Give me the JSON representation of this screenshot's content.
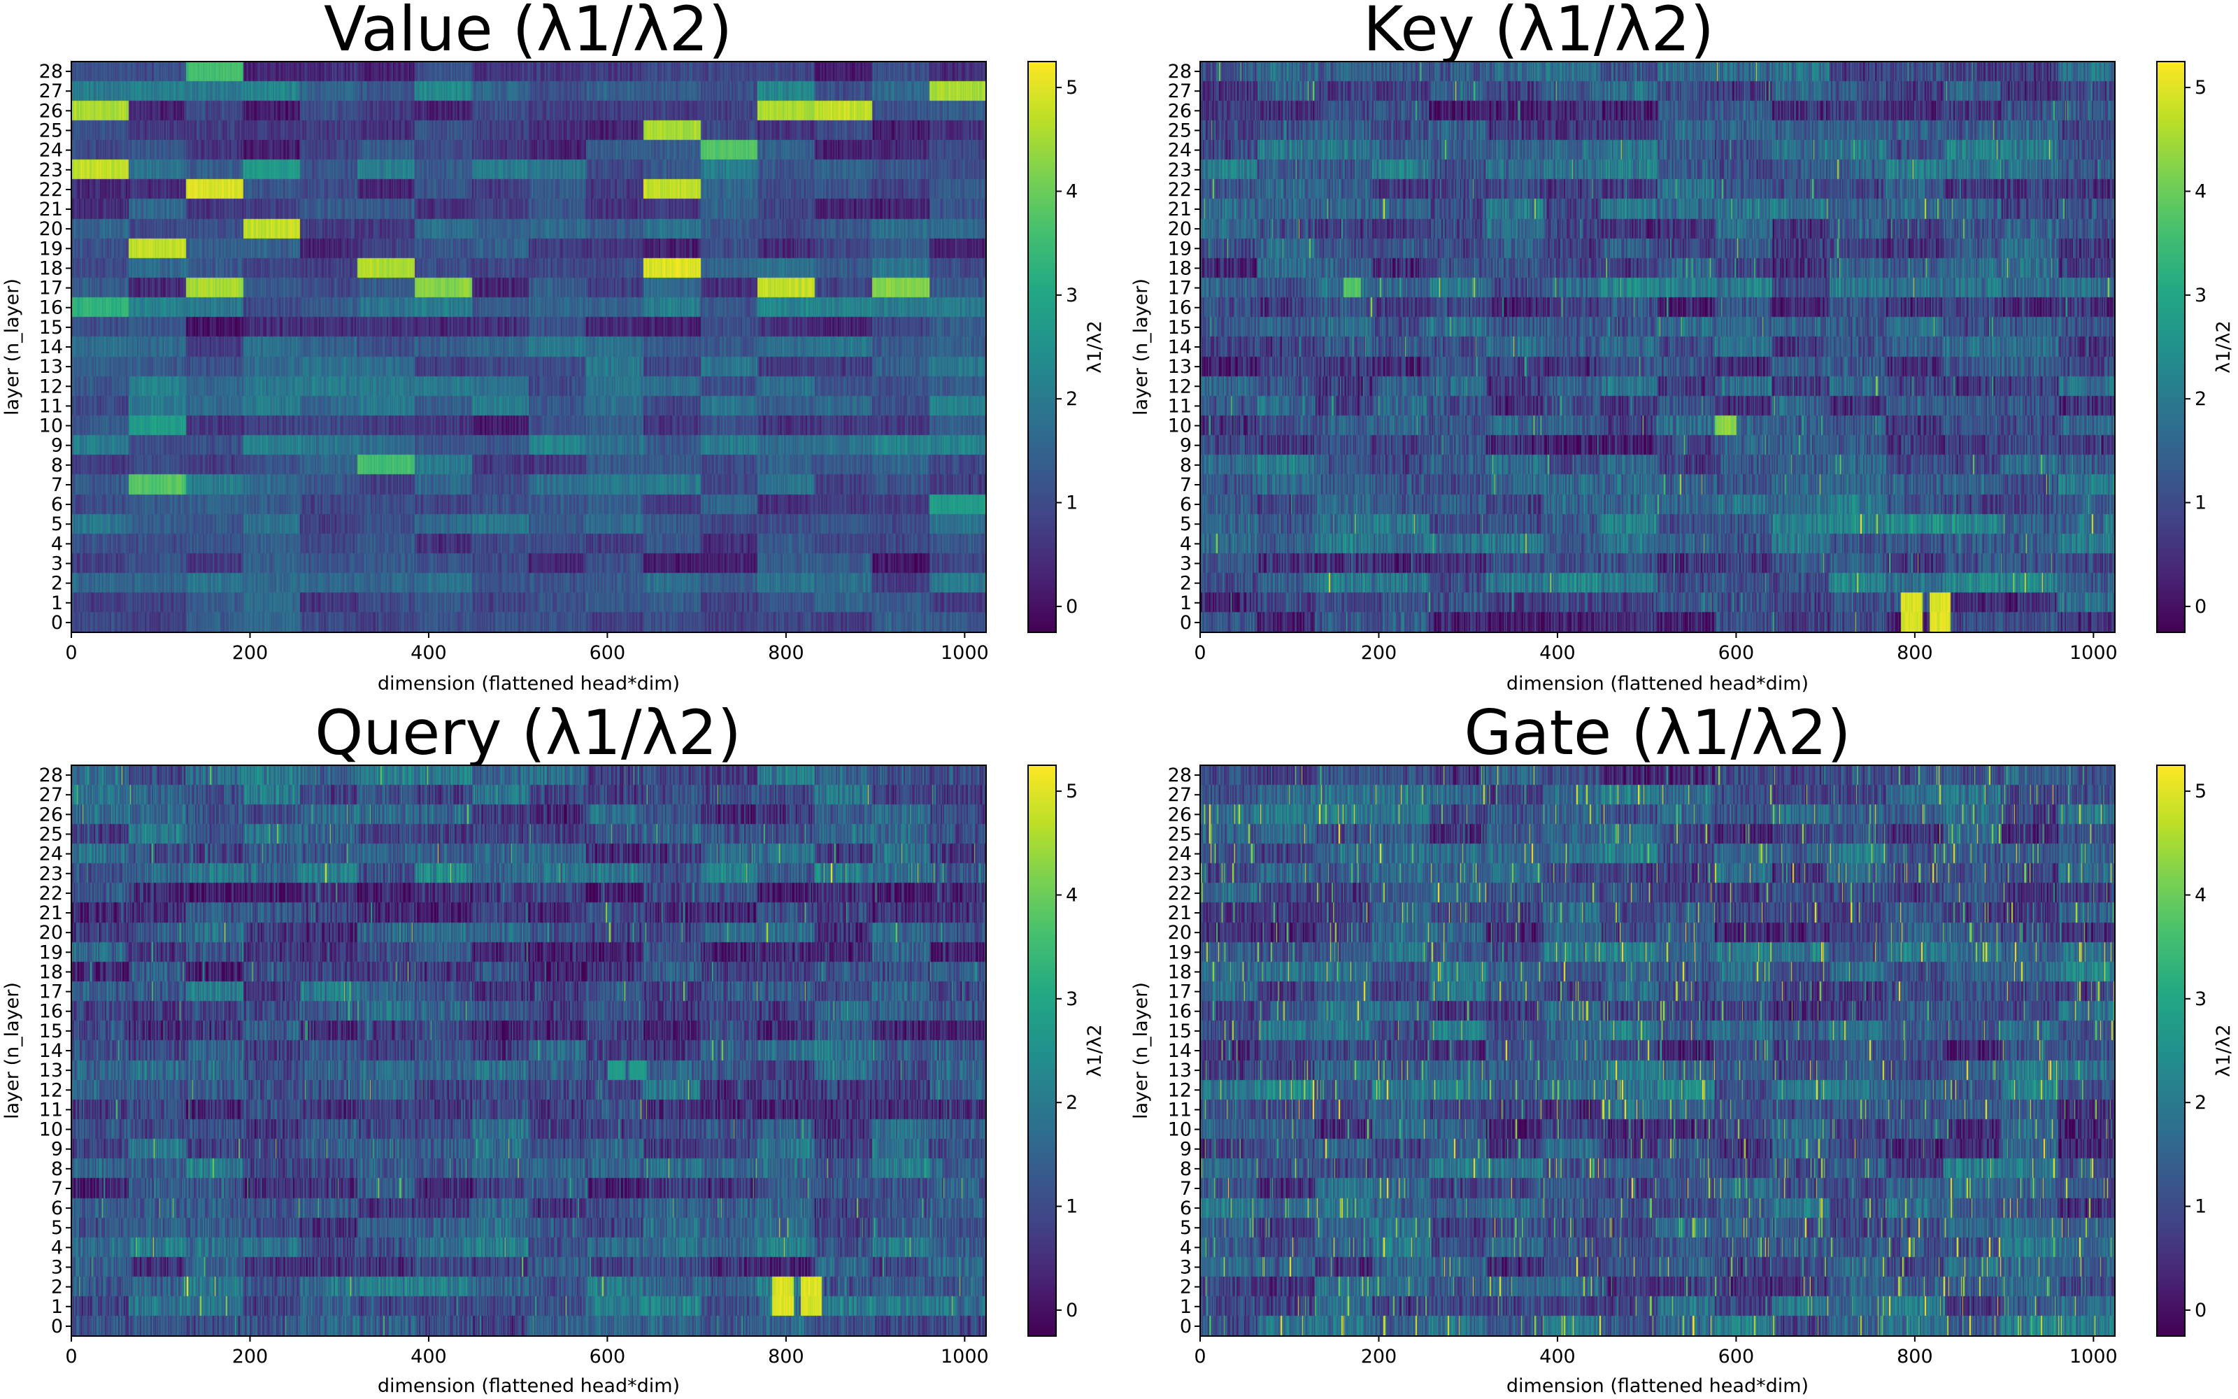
{
  "figure": {
    "colormap": "viridis"
  },
  "chart_data": [
    {
      "type": "heatmap",
      "title": "Value  (λ1/λ2)",
      "xlabel": "dimension (flattened head*dim)",
      "ylabel": "layer (n_layer)",
      "colorbar_label": "λ1/λ2",
      "x_range": [
        0,
        1024
      ],
      "y_range": [
        0,
        28
      ],
      "xticks": [
        "0",
        "200",
        "400",
        "600",
        "800",
        "1000"
      ],
      "yticks": [
        "0",
        "1",
        "2",
        "3",
        "4",
        "5",
        "6",
        "7",
        "8",
        "9",
        "10",
        "11",
        "12",
        "13",
        "14",
        "15",
        "16",
        "17",
        "18",
        "19",
        "20",
        "21",
        "22",
        "23",
        "24",
        "25",
        "26",
        "27",
        "28"
      ],
      "colorbar_range": [
        -0.25,
        5.25
      ],
      "colorbar_ticks": [
        "0",
        "1",
        "2",
        "3",
        "4",
        "5"
      ],
      "hotspots": [
        {
          "x0": 0,
          "x1": 64,
          "layer": 26,
          "value": 4.8
        },
        {
          "x0": 0,
          "x1": 64,
          "layer": 23,
          "value": 5.0
        },
        {
          "x0": 0,
          "x1": 64,
          "layer": 16,
          "value": 3.5
        },
        {
          "x0": 64,
          "x1": 128,
          "layer": 19,
          "value": 5.0
        },
        {
          "x0": 64,
          "x1": 128,
          "layer": 7,
          "value": 4.0
        },
        {
          "x0": 64,
          "x1": 128,
          "layer": 10,
          "value": 3.0
        },
        {
          "x0": 128,
          "x1": 192,
          "layer": 22,
          "value": 5.2
        },
        {
          "x0": 128,
          "x1": 192,
          "layer": 17,
          "value": 4.8
        },
        {
          "x0": 128,
          "x1": 192,
          "layer": 28,
          "value": 3.8
        },
        {
          "x0": 192,
          "x1": 256,
          "layer": 20,
          "value": 5.0
        },
        {
          "x0": 192,
          "x1": 256,
          "layer": 23,
          "value": 3.0
        },
        {
          "x0": 320,
          "x1": 384,
          "layer": 18,
          "value": 4.8
        },
        {
          "x0": 320,
          "x1": 384,
          "layer": 8,
          "value": 3.8
        },
        {
          "x0": 384,
          "x1": 448,
          "layer": 17,
          "value": 4.5
        },
        {
          "x0": 640,
          "x1": 704,
          "layer": 22,
          "value": 5.0
        },
        {
          "x0": 640,
          "x1": 704,
          "layer": 18,
          "value": 5.2
        },
        {
          "x0": 640,
          "x1": 704,
          "layer": 25,
          "value": 4.8
        },
        {
          "x0": 704,
          "x1": 768,
          "layer": 24,
          "value": 4.0
        },
        {
          "x0": 768,
          "x1": 832,
          "layer": 17,
          "value": 5.0
        },
        {
          "x0": 768,
          "x1": 832,
          "layer": 26,
          "value": 4.8
        },
        {
          "x0": 832,
          "x1": 896,
          "layer": 26,
          "value": 5.0
        },
        {
          "x0": 896,
          "x1": 960,
          "layer": 17,
          "value": 4.5
        },
        {
          "x0": 960,
          "x1": 1024,
          "layer": 27,
          "value": 4.8
        },
        {
          "x0": 960,
          "x1": 1024,
          "layer": 6,
          "value": 3.0
        }
      ]
    },
    {
      "type": "heatmap",
      "title": "Key  (λ1/λ2)",
      "xlabel": "dimension (flattened head*dim)",
      "ylabel": "layer (n_layer)",
      "colorbar_label": "λ1/λ2",
      "x_range": [
        0,
        1024
      ],
      "y_range": [
        0,
        28
      ],
      "xticks": [
        "0",
        "200",
        "400",
        "600",
        "800",
        "1000"
      ],
      "yticks": [
        "0",
        "1",
        "2",
        "3",
        "4",
        "5",
        "6",
        "7",
        "8",
        "9",
        "10",
        "11",
        "12",
        "13",
        "14",
        "15",
        "16",
        "17",
        "18",
        "19",
        "20",
        "21",
        "22",
        "23",
        "24",
        "25",
        "26",
        "27",
        "28"
      ],
      "colorbar_range": [
        -0.25,
        5.25
      ],
      "colorbar_ticks": [
        "0",
        "1",
        "2",
        "3",
        "4",
        "5"
      ],
      "hotspots": [
        {
          "x0": 784,
          "x1": 808,
          "layer": 0,
          "value": 5.2
        },
        {
          "x0": 784,
          "x1": 808,
          "layer": 1,
          "value": 5.2
        },
        {
          "x0": 816,
          "x1": 840,
          "layer": 0,
          "value": 5.2
        },
        {
          "x0": 816,
          "x1": 840,
          "layer": 1,
          "value": 5.2
        },
        {
          "x0": 576,
          "x1": 600,
          "layer": 10,
          "value": 4.5
        },
        {
          "x0": 160,
          "x1": 180,
          "layer": 17,
          "value": 4.0
        }
      ]
    },
    {
      "type": "heatmap",
      "title": "Query  (λ1/λ2)",
      "xlabel": "dimension (flattened head*dim)",
      "ylabel": "layer (n_layer)",
      "colorbar_label": "λ1/λ2",
      "x_range": [
        0,
        1024
      ],
      "y_range": [
        0,
        28
      ],
      "xticks": [
        "0",
        "200",
        "400",
        "600",
        "800",
        "1000"
      ],
      "yticks": [
        "0",
        "1",
        "2",
        "3",
        "4",
        "5",
        "6",
        "7",
        "8",
        "9",
        "10",
        "11",
        "12",
        "13",
        "14",
        "15",
        "16",
        "17",
        "18",
        "19",
        "20",
        "21",
        "22",
        "23",
        "24",
        "25",
        "26",
        "27",
        "28"
      ],
      "colorbar_range": [
        -0.25,
        5.25
      ],
      "colorbar_ticks": [
        "0",
        "1",
        "2",
        "3",
        "4",
        "5"
      ],
      "hotspots": [
        {
          "x0": 784,
          "x1": 808,
          "layer": 1,
          "value": 5.2
        },
        {
          "x0": 784,
          "x1": 808,
          "layer": 2,
          "value": 5.2
        },
        {
          "x0": 816,
          "x1": 840,
          "layer": 1,
          "value": 5.2
        },
        {
          "x0": 816,
          "x1": 840,
          "layer": 2,
          "value": 5.2
        },
        {
          "x0": 600,
          "x1": 620,
          "layer": 13,
          "value": 3.0
        },
        {
          "x0": 624,
          "x1": 644,
          "layer": 13,
          "value": 3.0
        }
      ]
    },
    {
      "type": "heatmap",
      "title": "Gate  (λ1/λ2)",
      "xlabel": "dimension (flattened head*dim)",
      "ylabel": "layer (n_layer)",
      "colorbar_label": "λ1/λ2",
      "x_range": [
        0,
        1024
      ],
      "y_range": [
        0,
        28
      ],
      "xticks": [
        "0",
        "200",
        "400",
        "600",
        "800",
        "1000"
      ],
      "yticks": [
        "0",
        "1",
        "2",
        "3",
        "4",
        "5",
        "6",
        "7",
        "8",
        "9",
        "10",
        "11",
        "12",
        "13",
        "14",
        "15",
        "16",
        "17",
        "18",
        "19",
        "20",
        "21",
        "22",
        "23",
        "24",
        "25",
        "26",
        "27",
        "28"
      ],
      "colorbar_range": [
        -0.25,
        5.25
      ],
      "colorbar_ticks": [
        "0",
        "1",
        "2",
        "3",
        "4",
        "5"
      ],
      "hotspots": []
    }
  ]
}
